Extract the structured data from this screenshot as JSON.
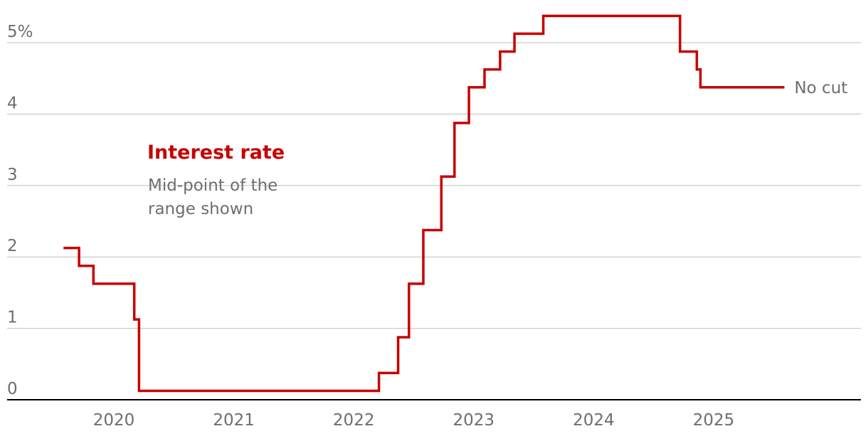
{
  "chart_data": {
    "type": "line",
    "title": "Interest rate",
    "subtitle_lines": [
      "Mid-point of the",
      "range shown"
    ],
    "xlabel": "",
    "ylabel": "",
    "xlim": [
      2019.25,
      2026.25
    ],
    "ylim": [
      0,
      5.4
    ],
    "x_ticks": [
      {
        "value": 2020,
        "label": "2020"
      },
      {
        "value": 2021,
        "label": "2021"
      },
      {
        "value": 2022,
        "label": "2022"
      },
      {
        "value": 2023,
        "label": "2023"
      },
      {
        "value": 2024,
        "label": "2024"
      },
      {
        "value": 2025,
        "label": "2025"
      }
    ],
    "y_ticks": [
      {
        "value": 0,
        "label": "0"
      },
      {
        "value": 1,
        "label": "1"
      },
      {
        "value": 2,
        "label": "2"
      },
      {
        "value": 3,
        "label": "3"
      },
      {
        "value": 4,
        "label": "4"
      },
      {
        "value": 5,
        "label": "5%"
      }
    ],
    "grid": "horizontal",
    "line_color": "#c70000",
    "grid_color": "#bdbdbd",
    "axis_color": "#000000",
    "text_color": "#6e6e6e",
    "series": [
      {
        "step": true,
        "points": [
          {
            "x": 2019.58,
            "y": 2.125
          },
          {
            "x": 2019.71,
            "y": 1.875
          },
          {
            "x": 2019.83,
            "y": 1.625
          },
          {
            "x": 2020.17,
            "y": 1.125
          },
          {
            "x": 2020.21,
            "y": 0.125
          },
          {
            "x": 2022.21,
            "y": 0.375
          },
          {
            "x": 2022.37,
            "y": 0.875
          },
          {
            "x": 2022.46,
            "y": 1.625
          },
          {
            "x": 2022.58,
            "y": 2.375
          },
          {
            "x": 2022.73,
            "y": 3.125
          },
          {
            "x": 2022.84,
            "y": 3.875
          },
          {
            "x": 2022.96,
            "y": 4.375
          },
          {
            "x": 2023.09,
            "y": 4.625
          },
          {
            "x": 2023.22,
            "y": 4.875
          },
          {
            "x": 2023.34,
            "y": 5.125
          },
          {
            "x": 2023.58,
            "y": 5.375
          },
          {
            "x": 2024.72,
            "y": 4.875
          },
          {
            "x": 2024.86,
            "y": 4.625
          },
          {
            "x": 2024.89,
            "y": 4.375
          },
          {
            "x": 2025.59,
            "y": 4.375
          }
        ]
      }
    ],
    "annotations": [
      {
        "text": "No cut",
        "x": 2025.59,
        "y": 4.375
      }
    ]
  }
}
